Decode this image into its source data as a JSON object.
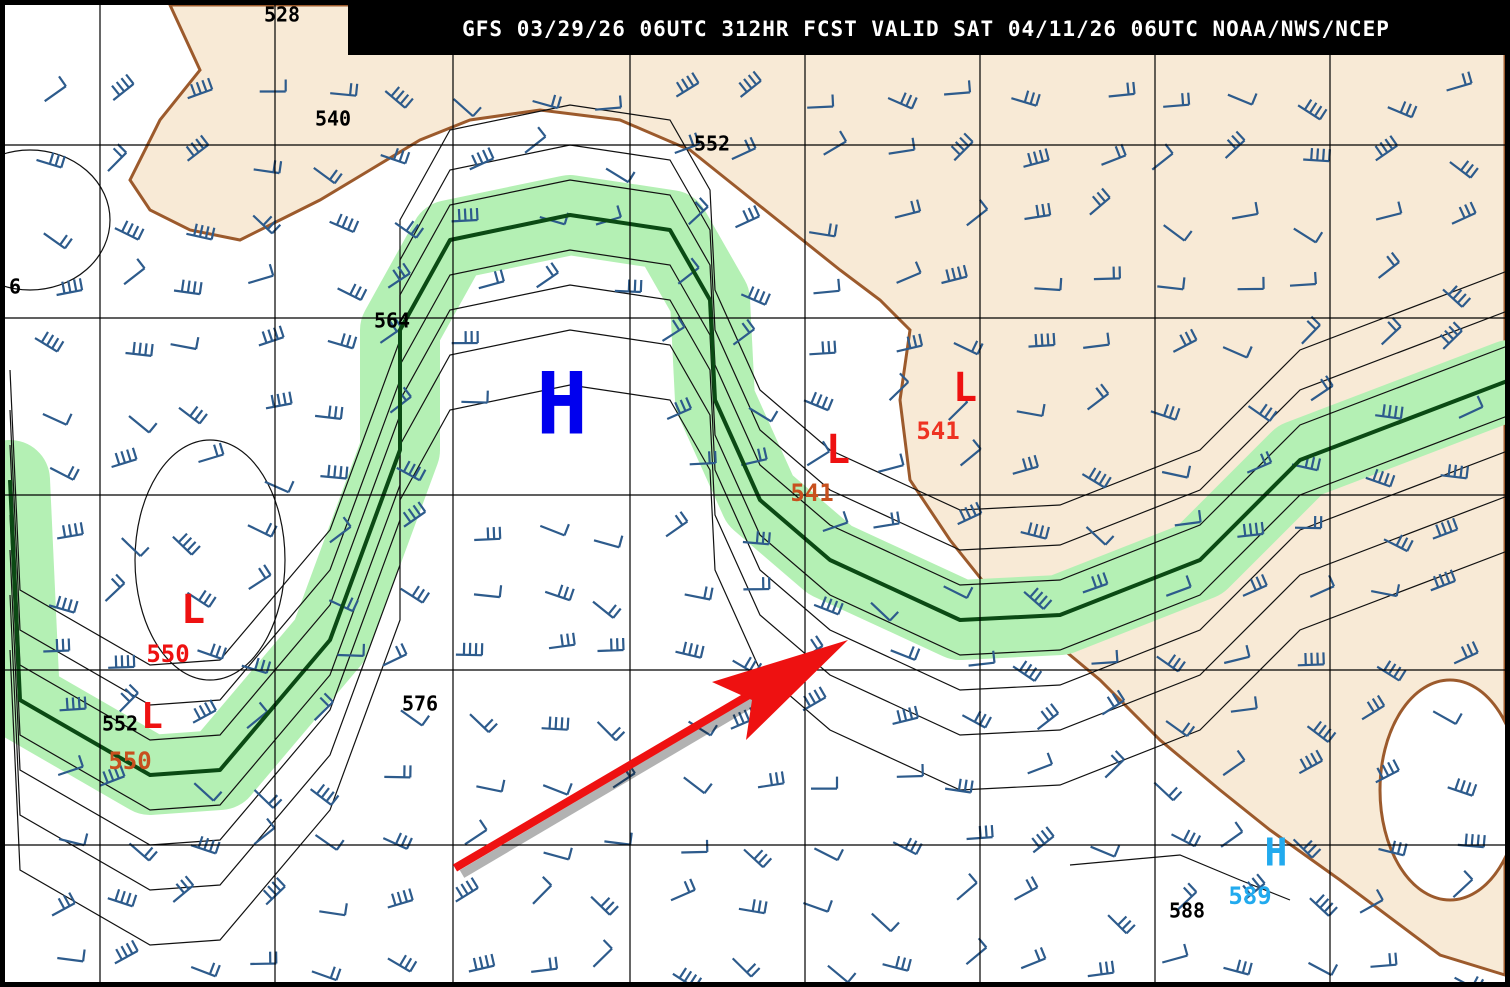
{
  "header": {
    "title": "GFS 03/29/26 06UTC 312HR FCST VALID SAT 04/11/26 06UTC NOAA/NWS/NCEP"
  },
  "contour_labels": [
    "528",
    "540",
    "552",
    "564",
    "576",
    "588",
    "6",
    "552"
  ],
  "centers": [
    {
      "symbol": "H",
      "value": null
    },
    {
      "symbol": "L",
      "value": 541
    },
    {
      "symbol": "L",
      "value": 541
    },
    {
      "symbol": "L",
      "value": 550
    },
    {
      "symbol": "L",
      "value": 550
    },
    {
      "symbol": "H",
      "value": 589
    }
  ]
}
